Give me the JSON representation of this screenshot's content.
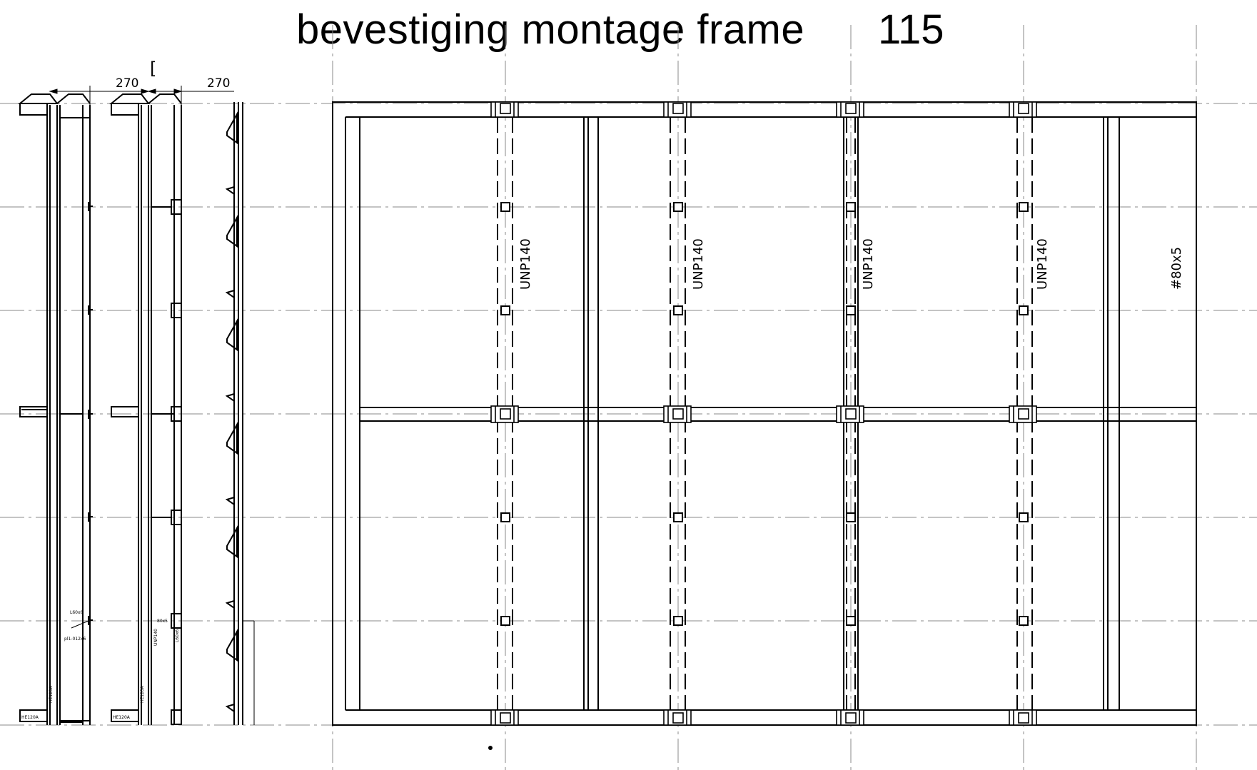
{
  "title": "bevestiging montage frame",
  "sheet_number": "115",
  "section_marker": "[",
  "dimensions": {
    "left": "270",
    "right": "270"
  },
  "profile_labels": {
    "column_1": "UNP140",
    "column_2": "UNP140",
    "column_3": "UNP140",
    "column_4": "UNP140",
    "edge": "#80x5"
  },
  "side_view_labels": {
    "beam_a": "HE120A",
    "beam_b": "HE120A",
    "angle_a": "L60x6",
    "plate_a": "pl1-012x6",
    "angle_b": "L60x6",
    "box_b": "80x5",
    "unp_b": "UNP140"
  },
  "colors": {
    "line": "#000000",
    "centerline": "#8a8a8a"
  }
}
